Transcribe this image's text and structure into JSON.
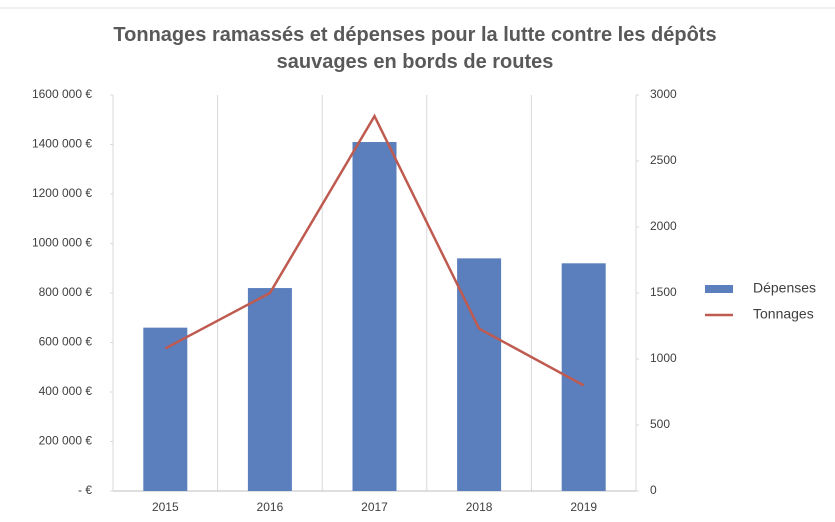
{
  "chart_data": {
    "type": "bar_line",
    "title": "Tonnages ramassés et dépenses pour la lutte contre les dépôts sauvages en bords de routes",
    "categories": [
      "2015",
      "2016",
      "2017",
      "2018",
      "2019"
    ],
    "series": [
      {
        "name": "Dépenses",
        "type": "bar",
        "color": "#5b7fbd",
        "values": [
          660000,
          820000,
          1410000,
          940000,
          920000
        ]
      },
      {
        "name": "Tonnages",
        "type": "line",
        "color": "#bf5a50",
        "axis": "y2",
        "values": [
          1080,
          1500,
          2840,
          1230,
          800
        ]
      }
    ],
    "ylim": [
      0,
      1600000
    ],
    "yticks": [
      {
        "value": 0,
        "label": "-  €"
      },
      {
        "value": 200000,
        "label": "200 000 €"
      },
      {
        "value": 400000,
        "label": "400 000 €"
      },
      {
        "value": 600000,
        "label": "600 000 €"
      },
      {
        "value": 800000,
        "label": "800 000 €"
      },
      {
        "value": 1000000,
        "label": "1000 000 €"
      },
      {
        "value": 1200000,
        "label": "1200 000 €"
      },
      {
        "value": 1400000,
        "label": "1400 000 €"
      },
      {
        "value": 1600000,
        "label": "1600 000 €"
      }
    ],
    "y2lim": [
      0,
      3000
    ],
    "y2ticks": [
      0,
      500,
      1000,
      1500,
      2000,
      2500,
      3000
    ],
    "legend": "right"
  }
}
